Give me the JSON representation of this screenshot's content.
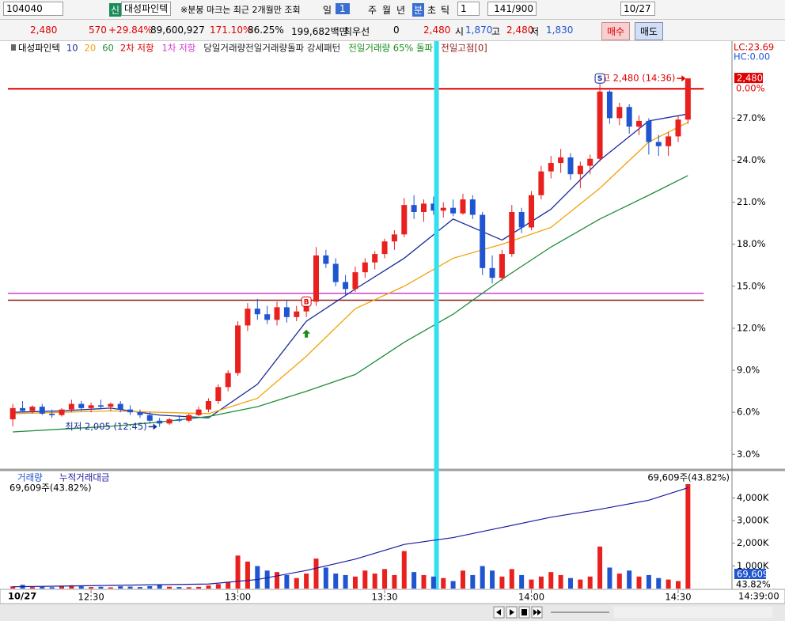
{
  "toolbar": {
    "code": "104040",
    "badge": "신",
    "name": "대성파인텍",
    "notice": "※분봉 마크는 최근 2개월만 조회",
    "periods": [
      "일",
      "1",
      "주",
      "월",
      "년",
      "분",
      "초",
      "틱"
    ],
    "interval": "1",
    "count": "141/900",
    "date": "10/27"
  },
  "quote": {
    "price": "2,480",
    "change": "570",
    "change_pct": "+29.84%",
    "volume": "89,600,927",
    "vol_ratio": "171.10%",
    "turnover_ratio": "86.25%",
    "amount": "199,682백만",
    "best_label": "최우선",
    "best_qty": "0",
    "best_price": "2,480",
    "open_label": "시",
    "open": "1,870",
    "high_label": "고",
    "high": "2,480",
    "low_label": "저",
    "low": "1,830",
    "buy": "매수",
    "sell": "매도"
  },
  "chart_data": [
    {
      "type": "candlestick",
      "title": "대성파인텍",
      "up_color": "#e8201e",
      "down_color": "#1f55d0",
      "ohlc": [
        [
          5.5,
          6.6,
          5.0,
          6.3
        ],
        [
          6.3,
          6.8,
          6.0,
          6.1
        ],
        [
          6.1,
          6.5,
          5.9,
          6.4
        ],
        [
          6.4,
          6.6,
          5.8,
          5.9
        ],
        [
          5.9,
          6.2,
          5.6,
          5.8
        ],
        [
          5.8,
          6.3,
          5.7,
          6.2
        ],
        [
          6.2,
          6.9,
          6.0,
          6.6
        ],
        [
          6.6,
          6.8,
          6.1,
          6.3
        ],
        [
          6.3,
          6.7,
          6.0,
          6.5
        ],
        [
          6.5,
          6.9,
          6.2,
          6.4
        ],
        [
          6.4,
          6.7,
          6.1,
          6.6
        ],
        [
          6.6,
          6.8,
          6.0,
          6.2
        ],
        [
          6.2,
          6.5,
          5.8,
          6.0
        ],
        [
          6.0,
          6.2,
          5.6,
          5.8
        ],
        [
          5.8,
          6.0,
          5.2,
          5.4
        ],
        [
          5.4,
          5.6,
          4.97,
          5.2
        ],
        [
          5.2,
          5.6,
          5.1,
          5.5
        ],
        [
          5.5,
          5.8,
          5.3,
          5.4
        ],
        [
          5.4,
          5.9,
          5.3,
          5.8
        ],
        [
          5.8,
          6.4,
          5.7,
          6.2
        ],
        [
          6.2,
          7.0,
          6.0,
          6.8
        ],
        [
          6.8,
          8.0,
          6.6,
          7.8
        ],
        [
          7.8,
          9.0,
          7.5,
          8.8
        ],
        [
          8.8,
          12.5,
          8.6,
          12.2
        ],
        [
          12.2,
          13.8,
          11.8,
          13.4
        ],
        [
          13.4,
          14.1,
          12.6,
          13.0
        ],
        [
          13.0,
          13.6,
          12.3,
          12.6
        ],
        [
          12.6,
          13.9,
          12.2,
          13.5
        ],
        [
          13.5,
          14.0,
          12.4,
          12.8
        ],
        [
          12.8,
          13.6,
          12.5,
          13.2
        ],
        [
          13.2,
          14.2,
          12.8,
          13.9
        ],
        [
          13.9,
          17.8,
          13.6,
          17.2
        ],
        [
          17.2,
          17.6,
          16.3,
          16.6
        ],
        [
          16.6,
          17.0,
          15.0,
          15.3
        ],
        [
          15.3,
          15.8,
          14.3,
          14.8
        ],
        [
          14.8,
          16.4,
          14.6,
          16.0
        ],
        [
          16.0,
          17.0,
          15.6,
          16.7
        ],
        [
          16.7,
          17.5,
          16.2,
          17.3
        ],
        [
          17.3,
          18.4,
          17.0,
          18.2
        ],
        [
          18.2,
          19.0,
          17.6,
          18.7
        ],
        [
          18.7,
          21.3,
          18.5,
          20.8
        ],
        [
          20.8,
          21.5,
          19.8,
          20.3
        ],
        [
          20.3,
          21.2,
          19.6,
          20.9
        ],
        [
          20.9,
          21.4,
          20.1,
          20.4
        ],
        [
          20.4,
          21.0,
          19.9,
          20.6
        ],
        [
          20.6,
          21.2,
          20.0,
          20.2
        ],
        [
          20.2,
          21.6,
          20.1,
          21.2
        ],
        [
          21.2,
          21.5,
          19.8,
          20.1
        ],
        [
          20.1,
          20.3,
          15.8,
          16.3
        ],
        [
          16.3,
          17.2,
          15.2,
          15.6
        ],
        [
          15.6,
          17.6,
          15.4,
          17.3
        ],
        [
          17.3,
          20.8,
          17.1,
          20.3
        ],
        [
          20.3,
          20.6,
          18.8,
          19.2
        ],
        [
          19.2,
          21.8,
          19.0,
          21.5
        ],
        [
          21.5,
          23.6,
          21.2,
          23.2
        ],
        [
          23.2,
          24.3,
          22.7,
          23.8
        ],
        [
          23.8,
          24.8,
          23.1,
          24.2
        ],
        [
          24.2,
          24.5,
          22.6,
          23.0
        ],
        [
          23.0,
          23.9,
          22.0,
          23.6
        ],
        [
          23.6,
          24.4,
          23.0,
          24.1
        ],
        [
          24.1,
          29.84,
          23.9,
          28.9
        ],
        [
          28.9,
          29.0,
          26.6,
          27.0
        ],
        [
          27.0,
          28.1,
          26.5,
          27.8
        ],
        [
          27.8,
          28.0,
          25.9,
          26.4
        ],
        [
          26.4,
          27.2,
          25.8,
          26.8
        ],
        [
          26.8,
          27.0,
          24.4,
          25.3
        ],
        [
          25.3,
          25.8,
          24.3,
          25.0
        ],
        [
          25.0,
          26.0,
          24.3,
          25.7
        ],
        [
          25.7,
          27.2,
          25.3,
          26.9
        ],
        [
          26.9,
          29.84,
          26.6,
          29.84
        ]
      ],
      "series": [
        {
          "name": "10",
          "color": "#1a2a9c",
          "x": [
            0,
            5,
            10,
            15,
            20,
            25,
            30,
            35,
            40,
            45,
            50,
            55,
            60,
            65,
            69
          ],
          "values": [
            6.0,
            6.1,
            6.3,
            5.8,
            5.6,
            8.0,
            12.5,
            14.8,
            17.0,
            19.8,
            18.3,
            20.5,
            24.0,
            26.8,
            27.3
          ]
        },
        {
          "name": "20",
          "color": "#f0a30a",
          "x": [
            0,
            5,
            10,
            15,
            20,
            25,
            30,
            35,
            40,
            45,
            50,
            55,
            60,
            65,
            69
          ],
          "values": [
            5.9,
            6.0,
            6.1,
            6.0,
            5.9,
            7.0,
            10.0,
            13.4,
            15.0,
            17.0,
            18.0,
            19.2,
            22.0,
            25.3,
            26.7
          ]
        },
        {
          "name": "60",
          "color": "#1e8c3a",
          "x": [
            0,
            5,
            10,
            15,
            20,
            25,
            30,
            35,
            40,
            45,
            50,
            55,
            60,
            65,
            69
          ],
          "values": [
            4.6,
            4.8,
            5.0,
            5.3,
            5.7,
            6.4,
            7.5,
            8.7,
            11.0,
            13.0,
            15.5,
            17.8,
            19.8,
            21.5,
            22.9
          ]
        }
      ],
      "hlines": [
        {
          "name": "2차 저항",
          "color": "#e00000",
          "value": 29.1
        },
        {
          "name": "1차 저항",
          "color": "#d040d0",
          "value": 14.5
        },
        {
          "name": "전일고점[0]",
          "color": "#8b1a1a",
          "value": 14.0
        }
      ],
      "indicators": [
        {
          "name": "당일거래량전일거래량돌파 강세패턴",
          "color": "#222222"
        },
        {
          "name": "전일거래량 65% 돌파",
          "color": "#1a8c1a"
        }
      ],
      "annotations": [
        {
          "text": "고 2,480 (14:36)",
          "index": 69,
          "value": 29.84,
          "color": "#e00000"
        },
        {
          "text": "최저 2,005 (12:45)",
          "index": 15,
          "value": 4.97,
          "color": "#1a2a9c"
        }
      ],
      "signals": [
        {
          "label": "B",
          "index": 30,
          "value": 13.9,
          "color": "#e00000",
          "arrow_color": "#1a8c1a"
        },
        {
          "label": "S",
          "index": 60,
          "value": 29.84,
          "color": "#1a2a9c"
        }
      ],
      "vline": {
        "value": 43.3,
        "color": "#33e0f0"
      },
      "lc": "LC:23.69",
      "hc": "HC:0.00",
      "price_tag": {
        "value": 29.84,
        "label": "2,480",
        "pct": "0.00%"
      },
      "xlim": [
        -0.5,
        73.5
      ],
      "xticks": [
        {
          "value": 8,
          "label": "12:30"
        },
        {
          "value": 23,
          "label": "13:00"
        },
        {
          "value": 38,
          "label": "13:30"
        },
        {
          "value": 53,
          "label": "14:00"
        },
        {
          "value": 68,
          "label": "14:30"
        }
      ],
      "date_label": "10/27",
      "time_label": "14:39:00",
      "ylim": [
        2,
        32.5
      ],
      "yticks": [
        {
          "value": 3,
          "label": "3.0%"
        },
        {
          "value": 6,
          "label": "6.0%"
        },
        {
          "value": 9,
          "label": "9.0%"
        },
        {
          "value": 12,
          "label": "12.0%"
        },
        {
          "value": 15,
          "label": "15.0%"
        },
        {
          "value": 18,
          "label": "18.0%"
        },
        {
          "value": 21,
          "label": "21.0%"
        },
        {
          "value": 24,
          "label": "24.0%"
        },
        {
          "value": 27,
          "label": "27.0%"
        }
      ],
      "grid": false
    },
    {
      "type": "volume",
      "header": "69,609주(43.82%)",
      "tag_value": "69,609",
      "tag_pct": "43.82%",
      "series": [
        {
          "name": "거래량",
          "color": "#1f55d0",
          "axis": "y2",
          "values": [
            1500,
            2500,
            1000,
            1200,
            900,
            1800,
            2200,
            1500,
            1000,
            1200,
            800,
            1500,
            1300,
            1000,
            1600,
            2500,
            1200,
            1000,
            900,
            1100,
            2000,
            3000,
            4500,
            22000,
            18000,
            15000,
            12000,
            11000,
            9000,
            7000,
            10000,
            20000,
            14000,
            10000,
            9000,
            8000,
            12000,
            10000,
            13000,
            9000,
            25000,
            11000,
            9000,
            8000,
            7000,
            5000,
            12000,
            9000,
            15000,
            12000,
            8000,
            13000,
            9000,
            6000,
            8000,
            11000,
            9000,
            7000,
            6000,
            8000,
            28000,
            14000,
            10000,
            12000,
            8000,
            9000,
            7000,
            6000,
            5000,
            69609
          ]
        },
        {
          "name": "누적거래대금",
          "color": "#1a1aa0",
          "x": [
            0,
            5,
            10,
            15,
            20,
            25,
            30,
            35,
            40,
            45,
            50,
            55,
            60,
            65,
            69
          ],
          "values": [
            80,
            110,
            140,
            170,
            200,
            400,
            800,
            1300,
            1950,
            2250,
            2700,
            3150,
            3500,
            3900,
            4450
          ]
        }
      ],
      "ylim": [
        0,
        5100
      ],
      "yticks": [
        {
          "value": 1000,
          "label": "1,000K"
        },
        {
          "value": 2000,
          "label": "2,000K"
        },
        {
          "value": 3000,
          "label": "3,000K"
        },
        {
          "value": 4000,
          "label": "4,000K"
        }
      ],
      "y2lim": [
        0,
        77000
      ]
    }
  ]
}
